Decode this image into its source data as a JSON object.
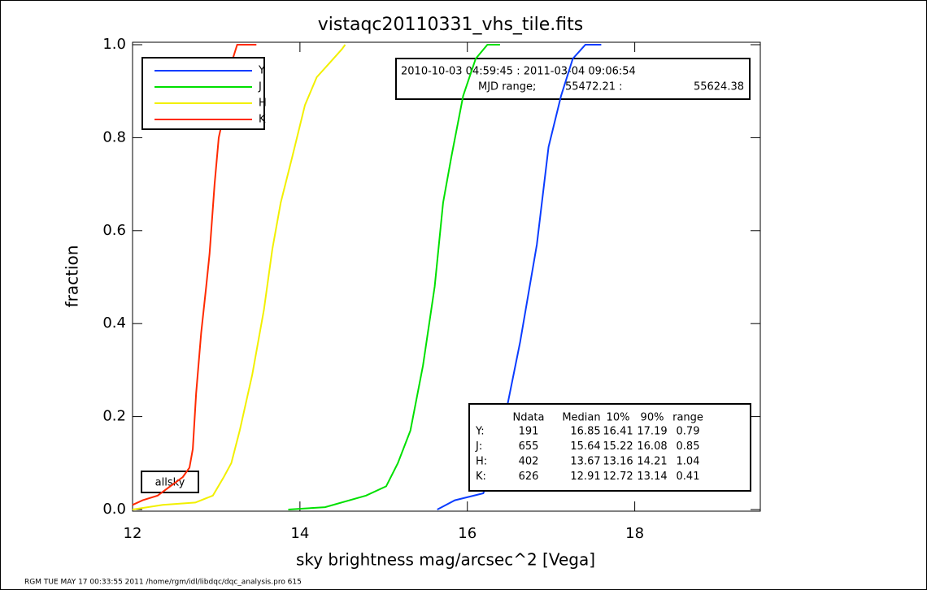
{
  "chart_data": {
    "type": "line",
    "title": "vistaqc20110331_vhs_tile.fits",
    "x_label": "sky brightness mag/arcsec^2 [Vega]",
    "y_label": "fraction",
    "xlim": [
      12,
      19.5
    ],
    "ylim": [
      0,
      1
    ],
    "xticks": [
      12,
      14,
      16,
      18
    ],
    "yticks": [
      {
        "value": 0,
        "label": "0.0"
      },
      0.2,
      0.4,
      0.6,
      0.8,
      {
        "value": 1,
        "label": "1.0"
      }
    ],
    "legend": "top-left",
    "series": [
      {
        "name": "Y",
        "color": "#0a3cff",
        "x": [
          15.64,
          15.85,
          16.19,
          16.29,
          16.44,
          16.63,
          16.83,
          16.97,
          17.12,
          17.26,
          17.41,
          17.6
        ],
        "values": [
          0,
          0.02,
          0.035,
          0.08,
          0.19,
          0.36,
          0.57,
          0.78,
          0.89,
          0.97,
          1.0,
          1.0
        ]
      },
      {
        "name": "J",
        "color": "#00e000",
        "x": [
          13.86,
          14.3,
          14.79,
          15.03,
          15.17,
          15.32,
          15.47,
          15.61,
          15.71,
          15.81,
          15.95,
          16.1,
          16.24,
          16.39
        ],
        "values": [
          0,
          0.005,
          0.03,
          0.05,
          0.1,
          0.17,
          0.31,
          0.48,
          0.66,
          0.76,
          0.89,
          0.97,
          1.0,
          1.0
        ]
      },
      {
        "name": "H",
        "color": "#f2f000",
        "x": [
          12.0,
          12.36,
          12.75,
          12.96,
          13.09,
          13.18,
          13.28,
          13.43,
          13.57,
          13.67,
          13.77,
          13.91,
          14.06,
          14.2,
          14.35,
          14.5,
          14.54
        ],
        "values": [
          0,
          0.01,
          0.015,
          0.03,
          0.07,
          0.1,
          0.17,
          0.29,
          0.43,
          0.56,
          0.66,
          0.76,
          0.87,
          0.93,
          0.96,
          0.99,
          1.0
        ]
      },
      {
        "name": "K",
        "color": "#ff2a00",
        "x": [
          12.0,
          12.12,
          12.3,
          12.45,
          12.6,
          12.68,
          12.72,
          12.76,
          12.82,
          12.88,
          12.92,
          12.98,
          13.03,
          13.09,
          13.14,
          13.18,
          13.25,
          13.48
        ],
        "values": [
          0.01,
          0.02,
          0.03,
          0.05,
          0.07,
          0.09,
          0.13,
          0.25,
          0.38,
          0.48,
          0.55,
          0.7,
          0.8,
          0.85,
          0.9,
          0.96,
          1.0,
          1.0
        ]
      }
    ],
    "date_range": "2010-10-03 04:59:45 : 2011-03-04 09:06:54",
    "mjd_label": "MJD range;",
    "mjd_start": "55472.21 :",
    "mjd_end": "55624.38",
    "region": "allsky",
    "stats": {
      "columns": [
        "Ndata",
        "Median",
        "10%",
        "90%",
        "range"
      ],
      "rows": [
        {
          "label": "Y:",
          "values": [
            191,
            16.85,
            16.41,
            17.19,
            0.79
          ]
        },
        {
          "label": "J:",
          "values": [
            655,
            15.64,
            15.22,
            16.08,
            0.85
          ]
        },
        {
          "label": "H:",
          "values": [
            402,
            13.67,
            13.16,
            14.21,
            1.04
          ]
        },
        {
          "label": "K:",
          "values": [
            626,
            12.91,
            12.72,
            13.14,
            0.41
          ]
        }
      ]
    },
    "footer": "RGM TUE MAY 17 00:33:55 2011 /home/rgm/idl/libdqc/dqc_analysis.pro 615"
  }
}
